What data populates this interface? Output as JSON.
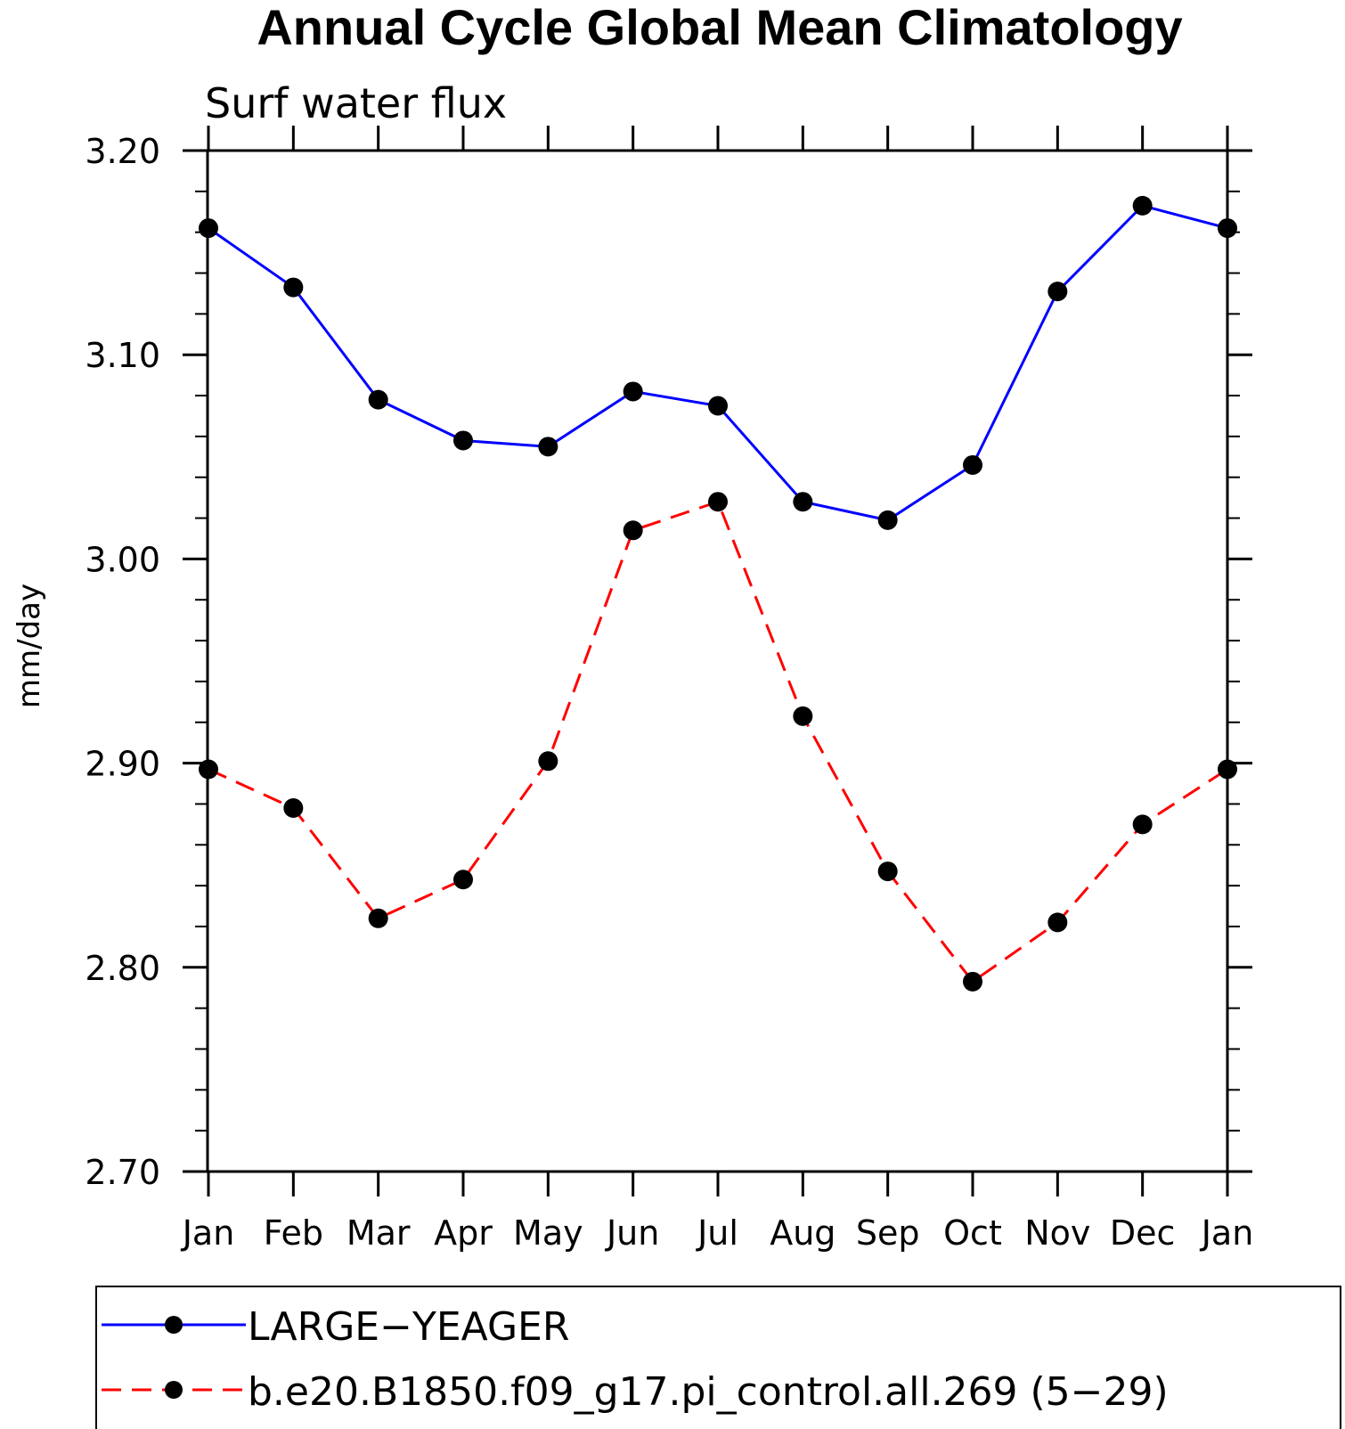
{
  "chart_data": {
    "type": "line",
    "title": "Annual Cycle Global Mean Climatology",
    "subtitle": "Surf water flux",
    "xlabel": "",
    "ylabel": "mm/day",
    "categories": [
      "Jan",
      "Feb",
      "Mar",
      "Apr",
      "May",
      "Jun",
      "Jul",
      "Aug",
      "Sep",
      "Oct",
      "Nov",
      "Dec",
      "Jan"
    ],
    "ylim": [
      2.7,
      3.2
    ],
    "yticks": [
      "2.70",
      "2.80",
      "2.90",
      "3.00",
      "3.10",
      "3.20"
    ],
    "ytick_values": [
      2.7,
      2.8,
      2.9,
      3.0,
      3.1,
      3.2
    ],
    "grid": false,
    "legend_position": "bottom",
    "series": [
      {
        "name": "LARGE−YEAGER",
        "color": "#0000ff",
        "dash": "solid",
        "values": [
          3.162,
          3.133,
          3.078,
          3.058,
          3.055,
          3.082,
          3.075,
          3.028,
          3.019,
          3.046,
          3.131,
          3.173,
          3.162
        ]
      },
      {
        "name": "b.e20.B1850.f09_g17.pi_control.all.269 (5−29)",
        "color": "#ff0000",
        "dash": "dashed",
        "values": [
          2.897,
          2.878,
          2.824,
          2.843,
          2.901,
          3.014,
          3.028,
          2.923,
          2.847,
          2.793,
          2.822,
          2.87,
          2.897
        ]
      }
    ]
  }
}
